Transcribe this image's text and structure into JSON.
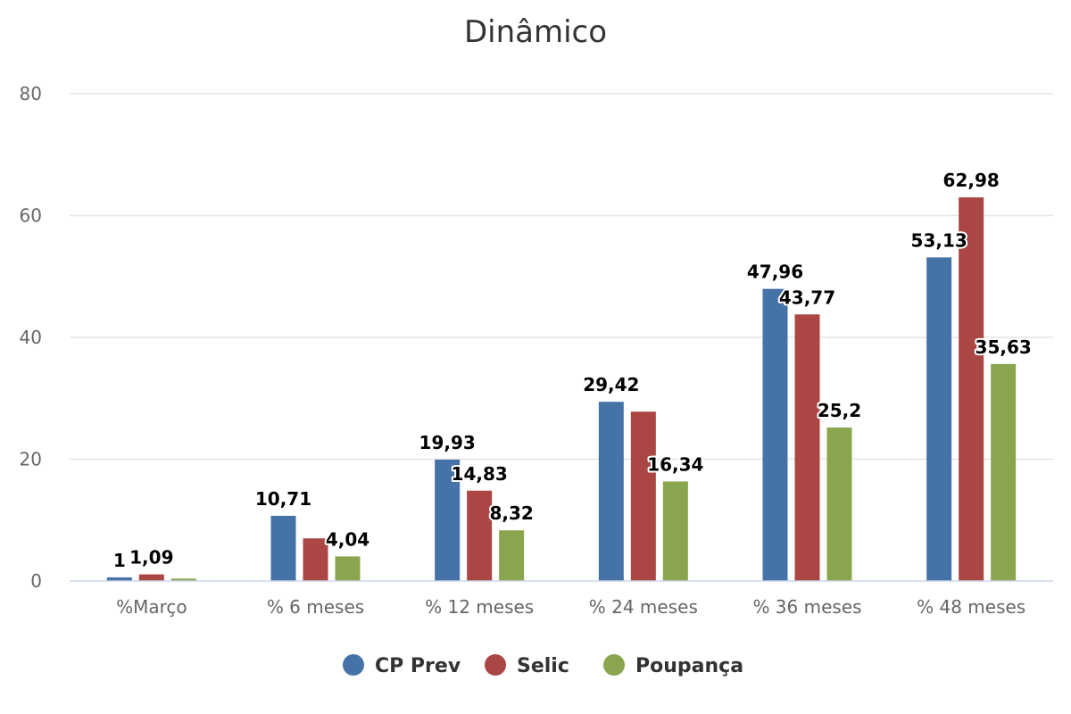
{
  "chart_data": {
    "type": "bar",
    "title": "Dinâmico",
    "xlabel": "",
    "ylabel": "",
    "categories": [
      "%Março",
      "% 6 meses",
      "% 12 meses",
      "% 24 meses",
      "% 36 meses",
      "% 48 meses"
    ],
    "ylim": [
      0,
      80
    ],
    "yticks": [
      0,
      20,
      40,
      60,
      80
    ],
    "grid": true,
    "legend_position": "bottom",
    "series": [
      {
        "name": "CP Prev",
        "color": "#4572A7",
        "values": [
          0.6,
          10.71,
          19.93,
          29.42,
          47.96,
          53.13
        ],
        "labels": [
          "1",
          "10,71",
          "19,93",
          "29,42",
          "47,96",
          "53,13"
        ]
      },
      {
        "name": "Selic",
        "color": "#AA4643",
        "values": [
          1.09,
          7.0,
          14.83,
          27.8,
          43.77,
          62.98
        ],
        "labels": [
          "1,09",
          "",
          "14,83",
          "",
          "43,77",
          "62,98"
        ]
      },
      {
        "name": "Poupança",
        "color": "#89A54E",
        "values": [
          0.4,
          4.04,
          8.32,
          16.34,
          25.2,
          35.63
        ],
        "labels": [
          "",
          "4,04",
          "8,32",
          "16,34",
          "25,2",
          "35,63"
        ]
      }
    ]
  }
}
